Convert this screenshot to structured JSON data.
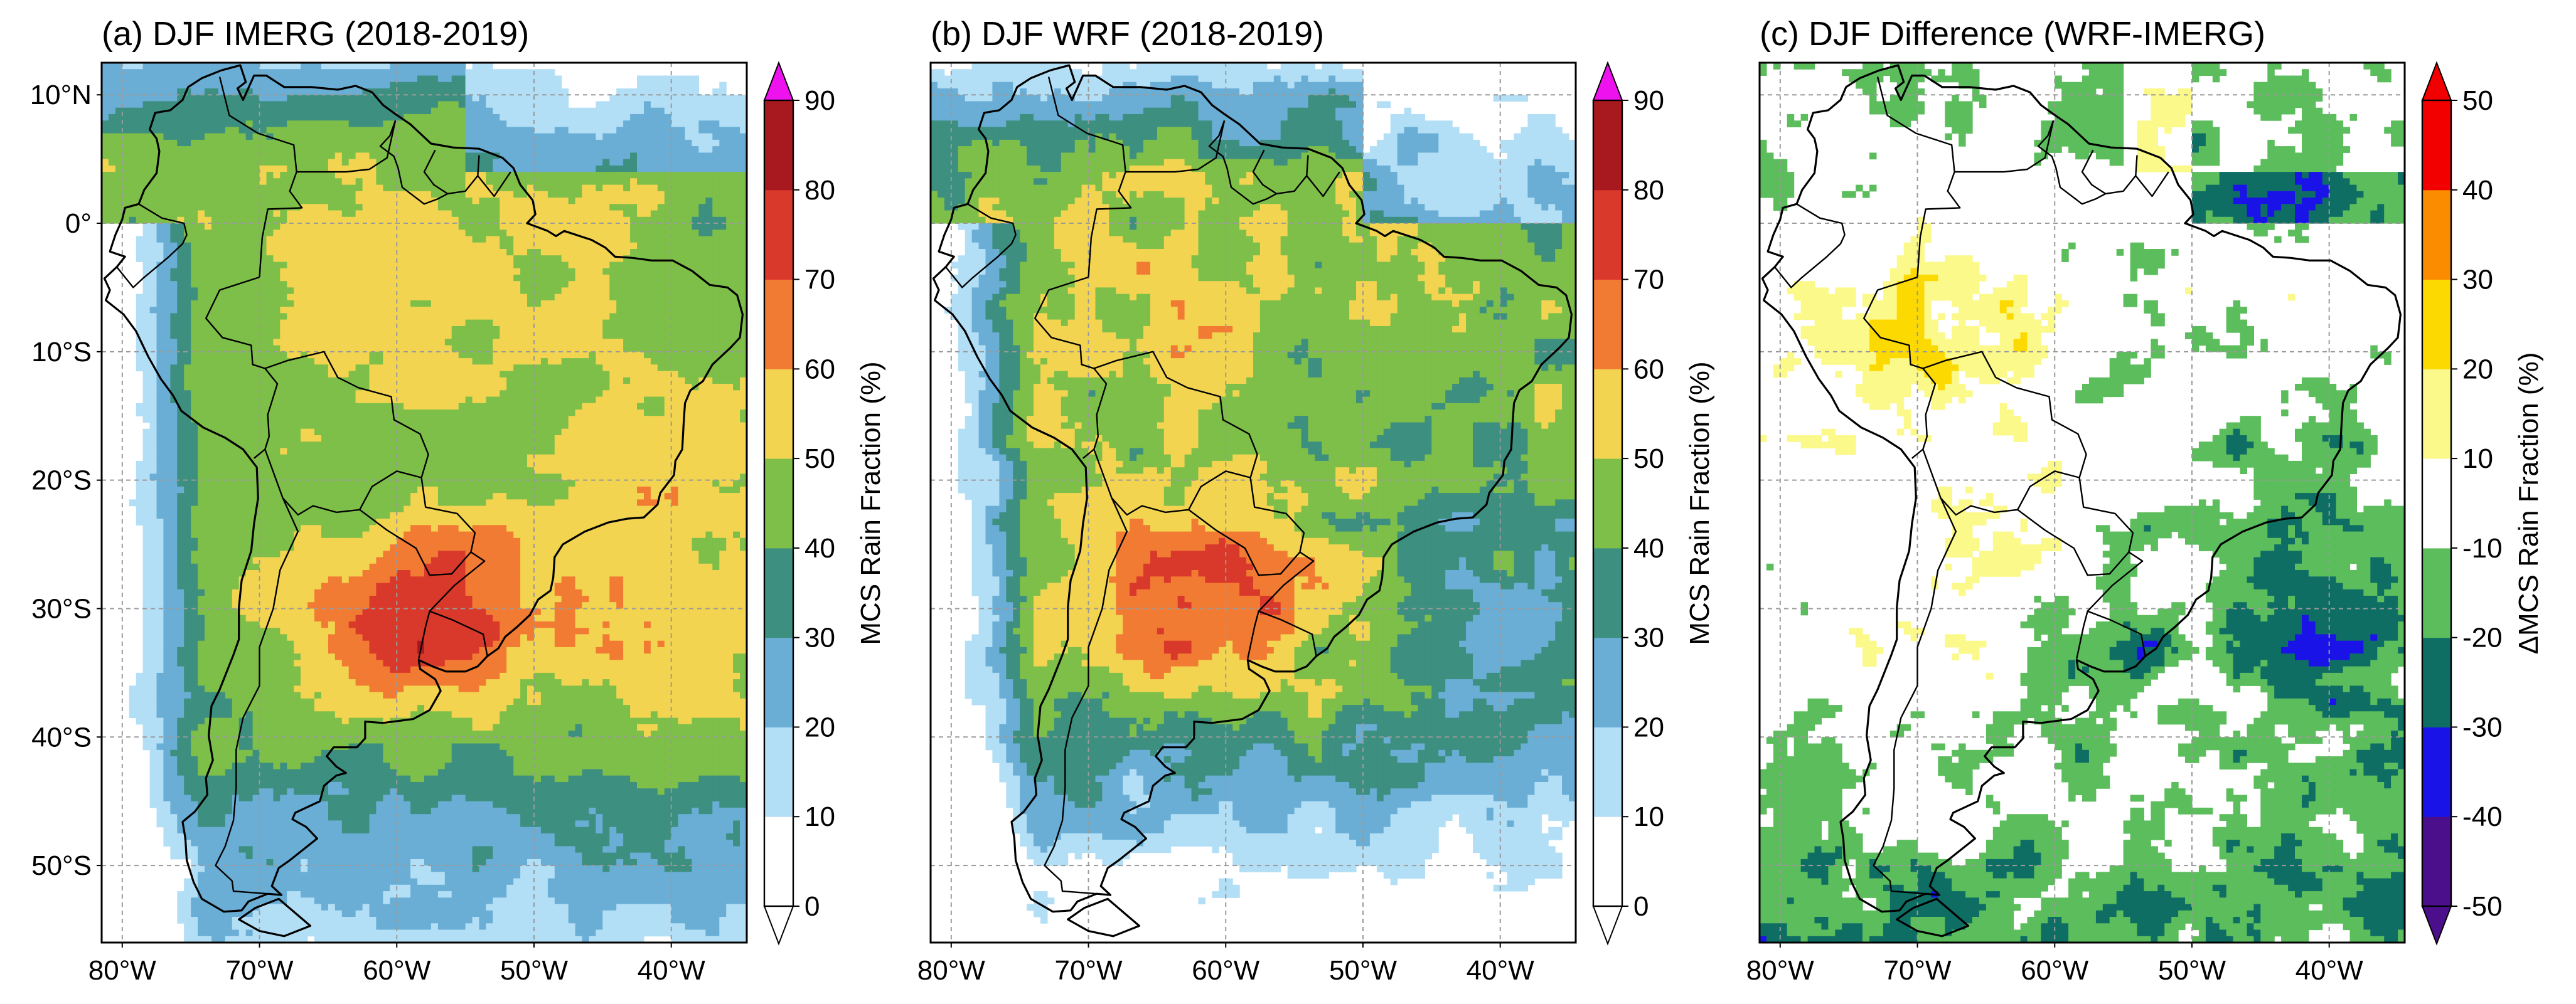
{
  "figure": {
    "panels": [
      {
        "id": "a",
        "title": "(a) DJF IMERG (2018-2019)",
        "field": "imerg",
        "show_lat_labels": true,
        "colorbar": {
          "label": "MCS Rain Fraction (%)",
          "ticks": [
            "0",
            "10",
            "20",
            "30",
            "40",
            "50",
            "60",
            "70",
            "80",
            "90"
          ],
          "colors": [
            "#ffffff",
            "#b3dff6",
            "#6aaed6",
            "#3d8f80",
            "#7ebf49",
            "#f3d451",
            "#f27b33",
            "#d9392b",
            "#a7191e"
          ],
          "extend_low": "#ffffff",
          "extend_high": "#ee12ee"
        }
      },
      {
        "id": "b",
        "title": "(b) DJF WRF (2018-2019)",
        "field": "wrf",
        "show_lat_labels": false,
        "colorbar": {
          "label": "MCS Rain Fraction (%)",
          "ticks": [
            "0",
            "10",
            "20",
            "30",
            "40",
            "50",
            "60",
            "70",
            "80",
            "90"
          ],
          "colors": [
            "#ffffff",
            "#b3dff6",
            "#6aaed6",
            "#3d8f80",
            "#7ebf49",
            "#f3d451",
            "#f27b33",
            "#d9392b",
            "#a7191e"
          ],
          "extend_low": "#ffffff",
          "extend_high": "#ee12ee"
        }
      },
      {
        "id": "c",
        "title": "(c) DJF Difference (WRF-IMERG)",
        "field": "diff",
        "show_lat_labels": false,
        "colorbar": {
          "label": "ΔMCS Rain Fraction (%)",
          "ticks": [
            "-50",
            "-40",
            "-30",
            "-20",
            "-10",
            "10",
            "20",
            "30",
            "40",
            "50"
          ],
          "colors": [
            "#4c0f8c",
            "#1a13e8",
            "#0f6e64",
            "#5cbd5c",
            "#ffffff",
            "#fbf98a",
            "#fcd900",
            "#fb8c00",
            "#f20000"
          ],
          "extend_low": "#4c0f8c",
          "extend_high": "#f20000"
        }
      }
    ],
    "lat_labels": [
      "10°N",
      "0°",
      "10°S",
      "20°S",
      "30°S",
      "40°S",
      "50°S"
    ],
    "lon_labels": [
      "80°W",
      "70°W",
      "60°W",
      "50°W",
      "40°W"
    ],
    "lat_values": [
      10,
      0,
      -10,
      -20,
      -30,
      -40,
      -50
    ],
    "lon_values": [
      -80,
      -70,
      -60,
      -50,
      -40
    ],
    "map_extent": {
      "lon_min": -81.5,
      "lon_max": -34.5,
      "lat_min": -56,
      "lat_max": 12.5
    }
  }
}
